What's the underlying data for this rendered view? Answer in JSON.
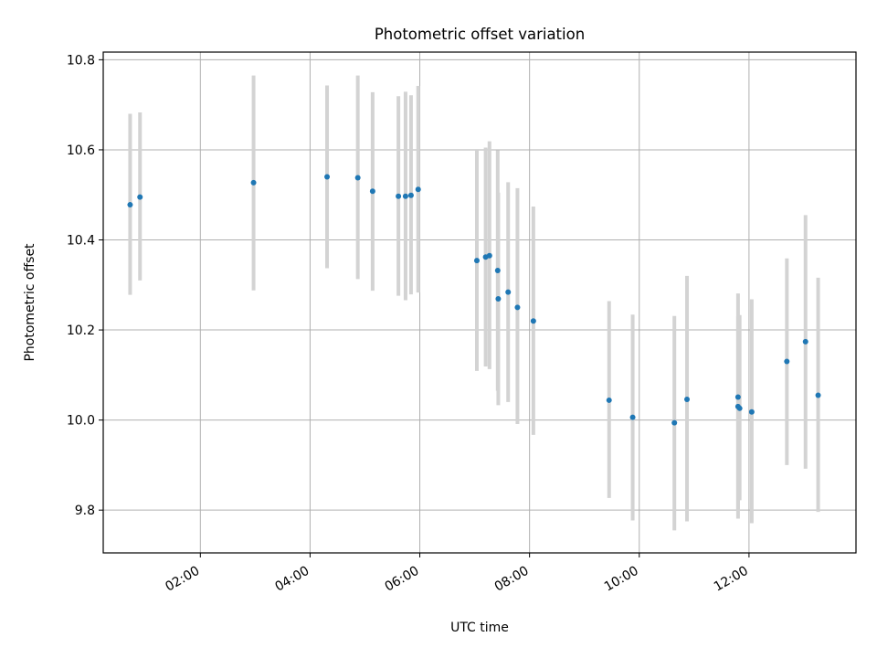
{
  "chart_data": {
    "type": "scatter",
    "title": "Photometric offset variation",
    "xlabel": "UTC time",
    "ylabel": "Photometric offset",
    "x_tick_labels": [
      "02:00",
      "04:00",
      "06:00",
      "08:00",
      "10:00",
      "12:00"
    ],
    "x_tick_times": [
      2,
      4,
      6,
      8,
      10,
      12
    ],
    "xlim": [
      0.23,
      13.95
    ],
    "y_tick_labels": [
      "9.8",
      "10.0",
      "10.2",
      "10.4",
      "10.6",
      "10.8"
    ],
    "y_ticks": [
      9.8,
      10.0,
      10.2,
      10.4,
      10.6,
      10.8
    ],
    "ylim": [
      9.705,
      10.817
    ],
    "grid": true,
    "colors": {
      "marker": "#1f77b4",
      "errorbar": "#d3d3d3",
      "grid": "#b0b0b0"
    },
    "points": [
      {
        "t": 0.72,
        "y": 10.478,
        "lo": 10.278,
        "hi": 10.68
      },
      {
        "t": 0.9,
        "y": 10.495,
        "lo": 10.31,
        "hi": 10.683
      },
      {
        "t": 2.97,
        "y": 10.527,
        "lo": 10.288,
        "hi": 10.765
      },
      {
        "t": 4.31,
        "y": 10.54,
        "lo": 10.337,
        "hi": 10.743
      },
      {
        "t": 4.87,
        "y": 10.538,
        "lo": 10.313,
        "hi": 10.765
      },
      {
        "t": 5.14,
        "y": 10.508,
        "lo": 10.287,
        "hi": 10.728
      },
      {
        "t": 5.61,
        "y": 10.497,
        "lo": 10.276,
        "hi": 10.719
      },
      {
        "t": 5.74,
        "y": 10.497,
        "lo": 10.266,
        "hi": 10.729
      },
      {
        "t": 5.84,
        "y": 10.499,
        "lo": 10.279,
        "hi": 10.721
      },
      {
        "t": 5.97,
        "y": 10.512,
        "lo": 10.283,
        "hi": 10.742
      },
      {
        "t": 7.04,
        "y": 10.354,
        "lo": 10.109,
        "hi": 10.598
      },
      {
        "t": 7.2,
        "y": 10.362,
        "lo": 10.119,
        "hi": 10.605
      },
      {
        "t": 7.27,
        "y": 10.365,
        "lo": 10.113,
        "hi": 10.619
      },
      {
        "t": 7.42,
        "y": 10.332,
        "lo": 10.065,
        "hi": 10.599
      },
      {
        "t": 7.43,
        "y": 10.269,
        "lo": 10.033,
        "hi": 10.505
      },
      {
        "t": 7.61,
        "y": 10.284,
        "lo": 10.04,
        "hi": 10.528
      },
      {
        "t": 7.78,
        "y": 10.25,
        "lo": 9.991,
        "hi": 10.515
      },
      {
        "t": 8.07,
        "y": 10.22,
        "lo": 9.967,
        "hi": 10.474
      },
      {
        "t": 9.45,
        "y": 10.044,
        "lo": 9.827,
        "hi": 10.264
      },
      {
        "t": 9.88,
        "y": 10.006,
        "lo": 9.777,
        "hi": 10.234
      },
      {
        "t": 10.64,
        "y": 9.994,
        "lo": 9.755,
        "hi": 10.231
      },
      {
        "t": 10.87,
        "y": 10.046,
        "lo": 9.775,
        "hi": 10.32
      },
      {
        "t": 11.8,
        "y": 10.051,
        "lo": 9.781,
        "hi": 10.281
      },
      {
        "t": 11.8,
        "y": 10.03,
        "lo": 9.8,
        "hi": 10.23
      },
      {
        "t": 11.83,
        "y": 10.026,
        "lo": 9.822,
        "hi": 10.233
      },
      {
        "t": 12.05,
        "y": 10.018,
        "lo": 9.771,
        "hi": 10.268
      },
      {
        "t": 12.69,
        "y": 10.13,
        "lo": 9.9,
        "hi": 10.359
      },
      {
        "t": 13.03,
        "y": 10.174,
        "lo": 9.892,
        "hi": 10.455
      },
      {
        "t": 13.26,
        "y": 10.055,
        "lo": 9.796,
        "hi": 10.316
      }
    ]
  }
}
